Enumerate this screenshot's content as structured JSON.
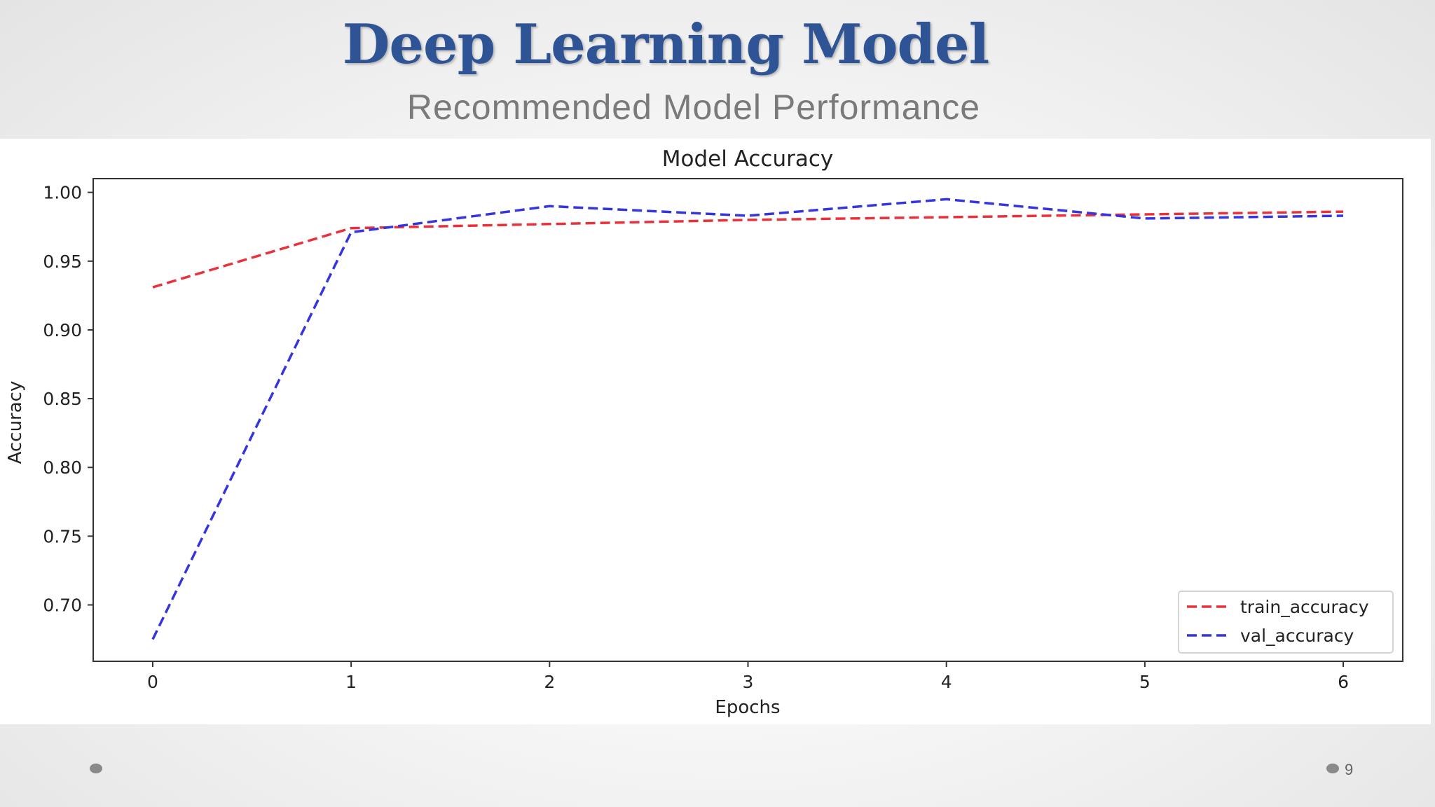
{
  "slide": {
    "title": "Deep Learning Model",
    "subtitle": "Recommended Model Performance",
    "page_number": "9"
  },
  "chart_data": {
    "type": "line",
    "title": "Model Accuracy",
    "xlabel": "Epochs",
    "ylabel": "Accuracy",
    "x": [
      0,
      1,
      2,
      3,
      4,
      5,
      6
    ],
    "xlim": [
      -0.3,
      6.3
    ],
    "ylim": [
      0.659,
      1.01
    ],
    "xticks": [
      0,
      1,
      2,
      3,
      4,
      5,
      6
    ],
    "yticks": [
      0.7,
      0.75,
      0.8,
      0.85,
      0.9,
      0.95,
      1.0
    ],
    "ytick_labels": [
      "0.70",
      "0.75",
      "0.80",
      "0.85",
      "0.90",
      "0.95",
      "1.00"
    ],
    "grid": false,
    "legend_position": "bottom-right",
    "series": [
      {
        "name": "train_accuracy",
        "color": "#e8313a",
        "line_style": "dashed",
        "values": [
          0.931,
          0.974,
          0.977,
          0.98,
          0.982,
          0.984,
          0.986
        ]
      },
      {
        "name": "val_accuracy",
        "color": "#3434e0",
        "line_style": "dashed",
        "values": [
          0.675,
          0.971,
          0.99,
          0.983,
          0.995,
          0.981,
          0.983
        ]
      }
    ]
  }
}
